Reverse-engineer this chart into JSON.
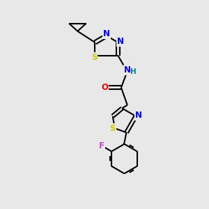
{
  "background_color": "#e8e8e8",
  "bond_color": "#000000",
  "atom_colors": {
    "S": "#cccc00",
    "N": "#0000ff",
    "O": "#ff0000",
    "F": "#cc44cc",
    "H": "#008080",
    "C": "#000000"
  },
  "figure_size": [
    3.0,
    3.0
  ],
  "dpi": 100,
  "lw": 1.5
}
